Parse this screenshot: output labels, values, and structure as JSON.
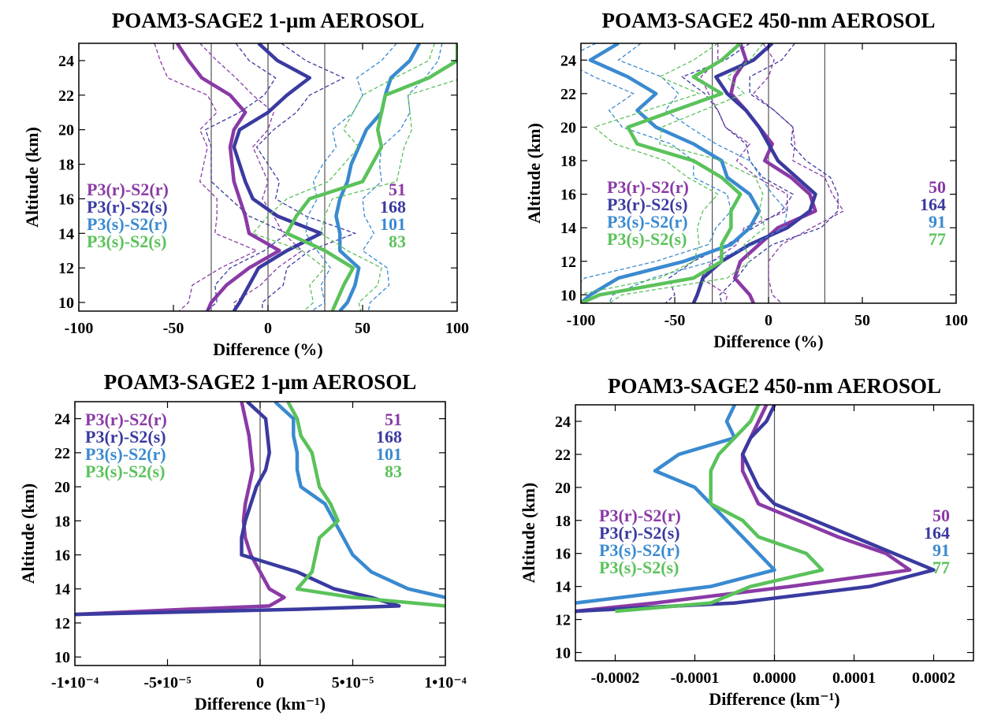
{
  "chart_data": [
    {
      "type": "line",
      "title": "POAM3-SAGE2 1-µm AEROSOL",
      "xlabel": "Difference (%)",
      "ylabel": "Altitude (km)",
      "xlim": [
        -100,
        100
      ],
      "ylim": [
        9.5,
        25
      ],
      "xticks": [
        -100,
        -50,
        0,
        50,
        100
      ],
      "xtick_labels": [
        "-100",
        "-50",
        "0",
        "50",
        "100"
      ],
      "yticks": [
        10,
        12,
        14,
        16,
        18,
        20,
        22,
        24
      ],
      "ytick_labels": [
        "10",
        "12",
        "14",
        "16",
        "18",
        "20",
        "22",
        "24"
      ],
      "vlines": [
        -30,
        0,
        30
      ],
      "legend_placement": "left",
      "altitudes": [
        25,
        24,
        23,
        22,
        21,
        20,
        19,
        18,
        17,
        16,
        15,
        14,
        13,
        12,
        11,
        10,
        9.5
      ],
      "series": [
        {
          "name": "P3(r)-S2(r)",
          "count": "51",
          "color": "#8a3aa5",
          "x": [
            -48,
            -42,
            -35,
            -20,
            -12,
            -18,
            -20,
            -19,
            -18,
            -15,
            -12,
            -10,
            6,
            -10,
            -22,
            -30,
            -32
          ]
        },
        {
          "name": "P3(r)-S2(s)",
          "count": "168",
          "color": "#3a3aa0",
          "x": [
            -5,
            5,
            22,
            10,
            0,
            -15,
            -18,
            -15,
            -12,
            -8,
            5,
            28,
            10,
            -5,
            -10,
            -15,
            -18
          ]
        },
        {
          "name": "P3(s)-S2(r)",
          "count": "101",
          "color": "#3a8ad0",
          "x": [
            80,
            75,
            65,
            62,
            60,
            52,
            48,
            44,
            42,
            38,
            36,
            38,
            38,
            48,
            46,
            42,
            38
          ]
        },
        {
          "name": "P3(s)-S2(s)",
          "count": "83",
          "color": "#5ac25a",
          "x": [
            100,
            100,
            85,
            62,
            60,
            58,
            60,
            55,
            50,
            22,
            15,
            10,
            30,
            45,
            40,
            36,
            34
          ]
        }
      ]
    },
    {
      "type": "line",
      "title": "POAM3-SAGE2 450-nm AEROSOL",
      "xlabel": "Difference (%)",
      "ylabel": "Altitude (km)",
      "xlim": [
        -100,
        100
      ],
      "ylim": [
        9.5,
        25
      ],
      "xticks": [
        -100,
        -50,
        0,
        50,
        100
      ],
      "xtick_labels": [
        "-100",
        "-50",
        "0",
        "50",
        "100"
      ],
      "yticks": [
        10,
        12,
        14,
        16,
        18,
        20,
        22,
        24
      ],
      "ytick_labels": [
        "10",
        "12",
        "14",
        "16",
        "18",
        "20",
        "22",
        "24"
      ],
      "vlines": [
        -30,
        0,
        30
      ],
      "legend_placement": "left",
      "altitudes": [
        25,
        24,
        23,
        22,
        21,
        20,
        19,
        18,
        17,
        16,
        15,
        14,
        13,
        12,
        11,
        10,
        9.5
      ],
      "series": [
        {
          "name": "P3(r)-S2(r)",
          "count": "50",
          "color": "#8a3aa5",
          "x": [
            -15,
            -12,
            -18,
            -20,
            -12,
            -5,
            2,
            -2,
            12,
            22,
            25,
            5,
            -5,
            -15,
            -18,
            -10,
            -8
          ]
        },
        {
          "name": "P3(r)-S2(s)",
          "count": "164",
          "color": "#3a3aa0",
          "x": [
            2,
            -8,
            -28,
            -22,
            -12,
            -5,
            0,
            5,
            15,
            25,
            22,
            10,
            -10,
            -25,
            -35,
            -38,
            -40
          ]
        },
        {
          "name": "P3(s)-S2(r)",
          "count": "91",
          "color": "#3a8ad0",
          "x": [
            -80,
            -95,
            -75,
            -60,
            -70,
            -60,
            -40,
            -25,
            -22,
            -10,
            -5,
            -10,
            -20,
            -45,
            -80,
            -95,
            -100
          ]
        },
        {
          "name": "P3(s)-S2(s)",
          "count": "77",
          "color": "#5ac25a",
          "x": [
            -15,
            -25,
            -40,
            -25,
            -50,
            -75,
            -70,
            -40,
            -25,
            -15,
            -20,
            -20,
            -25,
            -25,
            -40,
            -90,
            -100
          ]
        }
      ]
    },
    {
      "type": "line",
      "title": "POAM3-SAGE2 1-µm AEROSOL",
      "xlabel": "Difference (km⁻¹)",
      "ylabel": "Altitude (km)",
      "xlim": [
        -0.0001,
        0.0001
      ],
      "ylim": [
        9.5,
        25
      ],
      "xticks": [
        -0.0001,
        -5e-05,
        0,
        5e-05,
        0.0001
      ],
      "xtick_labels": [
        "-1•10⁻⁴",
        "-5•10⁻⁵",
        "0",
        "5•10⁻⁵",
        "1•10⁻⁴"
      ],
      "yticks": [
        10,
        12,
        14,
        16,
        18,
        20,
        22,
        24
      ],
      "ytick_labels": [
        "10",
        "12",
        "14",
        "16",
        "18",
        "20",
        "22",
        "24"
      ],
      "vlines": [
        0
      ],
      "legend_placement": "top-left",
      "altitudes": [
        25,
        24,
        23,
        22,
        21,
        20,
        19,
        18,
        17,
        16,
        15,
        14,
        13.5,
        13,
        12.8,
        12.5
      ],
      "series": [
        {
          "name": "P3(r)-S2(r)",
          "count": "51",
          "color": "#8a3aa5",
          "x": [
            -1e-05,
            -8e-06,
            -6e-06,
            -5e-06,
            -4e-06,
            -6e-06,
            -8e-06,
            -9e-06,
            -8e-06,
            -5e-06,
            0,
            5e-06,
            1.3e-05,
            5e-06,
            -4e-05,
            -0.0001
          ]
        },
        {
          "name": "P3(r)-S2(s)",
          "count": "168",
          "color": "#3a3aa0",
          "x": [
            -7e-06,
            3e-06,
            4e-06,
            5e-06,
            3e-06,
            -2e-06,
            -5e-06,
            -8e-06,
            -1e-05,
            -1e-05,
            2e-05,
            4e-05,
            6e-05,
            7.5e-05,
            2e-05,
            -0.0001
          ]
        },
        {
          "name": "P3(s)-S2(r)",
          "count": "101",
          "color": "#3a8ad0",
          "x": [
            8e-06,
            1.8e-05,
            1.8e-05,
            2e-05,
            2e-05,
            2.2e-05,
            3.5e-05,
            4e-05,
            4.5e-05,
            5e-05,
            6e-05,
            8e-05,
            0.0001
          ]
        },
        {
          "name": "P3(s)-S2(s)",
          "count": "83",
          "color": "#5ac25a",
          "x": [
            1.5e-05,
            2e-05,
            2.2e-05,
            2.8e-05,
            3e-05,
            3.2e-05,
            3.8e-05,
            4.2e-05,
            3.2e-05,
            3e-05,
            2.8e-05,
            2e-05,
            5e-05,
            0.0001
          ]
        }
      ]
    },
    {
      "type": "line",
      "title": "POAM3-SAGE2 450-nm AEROSOL",
      "xlabel": "Difference (km⁻¹)",
      "ylabel": "Altitude (km)",
      "xlim": [
        -0.00025,
        0.00025
      ],
      "ylim": [
        9.5,
        25
      ],
      "xticks": [
        -0.0002,
        -0.0001,
        0,
        0.0001,
        0.0002
      ],
      "xtick_labels": [
        "-0.0002",
        "-0.0001",
        "0.0000",
        "0.0001",
        "0.0002"
      ],
      "yticks": [
        10,
        12,
        14,
        16,
        18,
        20,
        22,
        24
      ],
      "ytick_labels": [
        "10",
        "12",
        "14",
        "16",
        "18",
        "20",
        "22",
        "24"
      ],
      "vlines": [
        0
      ],
      "legend_placement": "left",
      "altitudes": [
        25,
        24,
        23,
        22,
        21,
        20,
        19,
        18,
        17,
        16,
        15,
        14,
        13,
        12.5
      ],
      "series": [
        {
          "name": "P3(r)-S2(r)",
          "count": "50",
          "color": "#8a3aa5",
          "x": [
            -1e-05,
            -2e-05,
            -3e-05,
            -4e-05,
            -4e-05,
            -3e-05,
            -2e-05,
            3e-05,
            8e-05,
            0.00014,
            0.00017,
            2e-05,
            -0.00015,
            -0.00025
          ]
        },
        {
          "name": "P3(r)-S2(s)",
          "count": "164",
          "color": "#3a3aa0",
          "x": [
            0,
            -1e-05,
            -3e-05,
            -4e-05,
            -3e-05,
            -2e-05,
            0,
            5e-05,
            0.0001,
            0.00015,
            0.0002,
            0.00012,
            -5e-05,
            -0.00025
          ]
        },
        {
          "name": "P3(s)-S2(r)",
          "count": "91",
          "color": "#3a8ad0",
          "x": [
            -5e-05,
            -6e-05,
            -5e-05,
            -0.00012,
            -0.00015,
            -0.0001,
            -8e-05,
            -6e-05,
            -4e-05,
            -2e-05,
            0,
            -8e-05,
            -0.00025
          ]
        },
        {
          "name": "P3(s)-S2(s)",
          "count": "77",
          "color": "#5ac25a",
          "x": [
            -2e-05,
            -3e-05,
            -5e-05,
            -7e-05,
            -8e-05,
            -8e-05,
            -8e-05,
            -4e-05,
            -2e-05,
            4e-05,
            6e-05,
            -3e-05,
            -8e-05,
            -0.0002
          ]
        }
      ]
    }
  ]
}
